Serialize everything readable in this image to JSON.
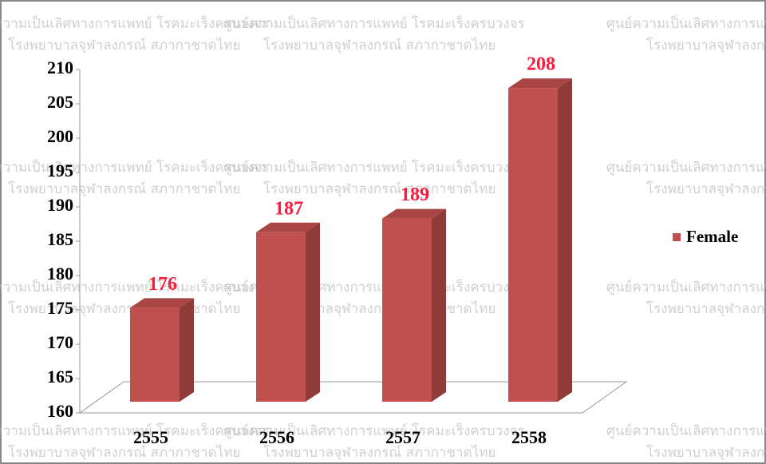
{
  "chart_data": {
    "type": "bar3d",
    "categories": [
      "2555",
      "2556",
      "2557",
      "2558"
    ],
    "series": [
      {
        "name": "Female",
        "color": "#c0504d",
        "values": [
          176,
          187,
          189,
          208
        ]
      }
    ],
    "ylim": [
      160,
      210
    ],
    "yticks": [
      160,
      165,
      170,
      175,
      180,
      185,
      190,
      195,
      200,
      205,
      210
    ],
    "legend": "right",
    "watermark": [
      "ศูนย์ความเป็นเลิศทางการแพทย์ โรคมะเร็งครบวงจร",
      "โรงพยาบาลจุฬาลงกรณ์ สภากาชาดไทย"
    ]
  }
}
